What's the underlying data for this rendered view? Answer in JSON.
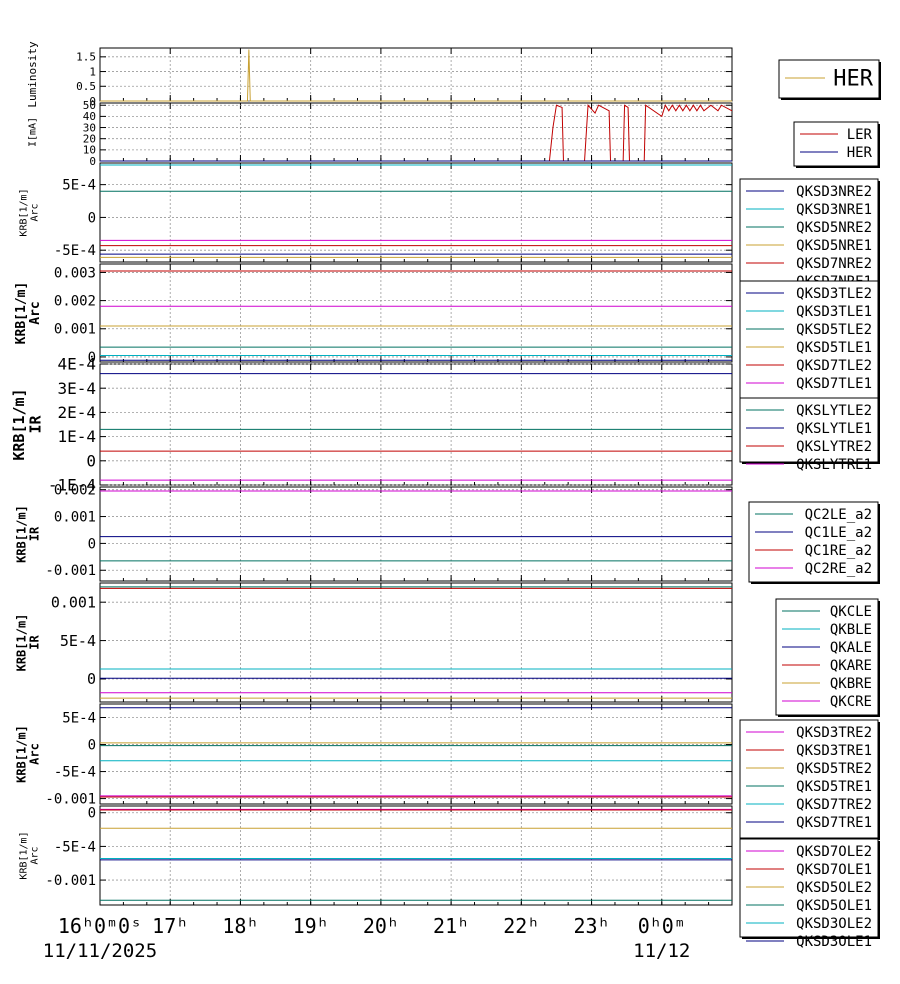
{
  "time_axis": {
    "ticks": [
      {
        "t": 16,
        "label": "16ʰ0ᵐ0ˢ"
      },
      {
        "t": 17,
        "label": "17ʰ"
      },
      {
        "t": 18,
        "label": "18ʰ"
      },
      {
        "t": 19,
        "label": "19ʰ"
      },
      {
        "t": 20,
        "label": "20ʰ"
      },
      {
        "t": 21,
        "label": "21ʰ"
      },
      {
        "t": 22,
        "label": "22ʰ"
      },
      {
        "t": 23,
        "label": "23ʰ"
      },
      {
        "t": 24,
        "label": "0ʰ0ᵐ"
      }
    ],
    "dates": [
      {
        "t": 16,
        "label": "11/11/2025"
      },
      {
        "t": 24,
        "label": "11/12"
      }
    ],
    "range": [
      16,
      25
    ]
  },
  "chart_data": [
    {
      "type": "line",
      "ylabel": "Luminosity",
      "ylim": [
        0,
        1.8
      ],
      "yticks": [
        {
          "v": 0,
          "label": "0"
        },
        {
          "v": 0.5,
          "label": "0.5"
        },
        {
          "v": 1,
          "label": "1"
        },
        {
          "v": 1.5,
          "label": "1.5"
        }
      ],
      "legend": [
        {
          "name": "HER",
          "color": "#c8a032"
        }
      ],
      "series": [
        {
          "name": "HER",
          "color": "#c8a032",
          "points": [
            [
              16,
              0
            ],
            [
              18.1,
              0
            ],
            [
              18.12,
              1.75
            ],
            [
              18.14,
              0
            ],
            [
              25,
              0
            ]
          ]
        }
      ]
    },
    {
      "type": "line",
      "ylabel": "I[mA]",
      "ylim": [
        0,
        52
      ],
      "yticks": [
        {
          "v": 0,
          "label": "0"
        },
        {
          "v": 10,
          "label": "10"
        },
        {
          "v": 20,
          "label": "20"
        },
        {
          "v": 30,
          "label": "30"
        },
        {
          "v": 40,
          "label": "40"
        },
        {
          "v": 50,
          "label": "50"
        }
      ],
      "legend": [
        {
          "name": "LER",
          "color": "#c00000"
        },
        {
          "name": "HER",
          "color": "#000080"
        }
      ],
      "series": [
        {
          "name": "LER",
          "color": "#c00000",
          "points": [
            [
              16,
              0
            ],
            [
              22.4,
              0
            ],
            [
              22.45,
              30
            ],
            [
              22.5,
              50
            ],
            [
              22.58,
              48
            ],
            [
              22.6,
              0
            ],
            [
              22.9,
              0
            ],
            [
              22.95,
              50
            ],
            [
              23.05,
              43
            ],
            [
              23.1,
              50
            ],
            [
              23.25,
              45
            ],
            [
              23.27,
              0
            ],
            [
              23.45,
              0
            ],
            [
              23.47,
              50
            ],
            [
              23.52,
              48
            ],
            [
              23.54,
              0
            ],
            [
              23.75,
              0
            ],
            [
              23.77,
              50
            ],
            [
              24.0,
              40
            ],
            [
              24.05,
              50
            ],
            [
              24.1,
              45
            ],
            [
              24.15,
              50
            ],
            [
              24.2,
              45
            ],
            [
              24.25,
              50
            ],
            [
              24.3,
              45
            ],
            [
              24.35,
              50
            ],
            [
              24.4,
              45
            ],
            [
              24.45,
              50
            ],
            [
              24.5,
              45
            ],
            [
              24.55,
              50
            ],
            [
              24.6,
              45
            ],
            [
              24.7,
              50
            ],
            [
              24.8,
              45
            ],
            [
              24.85,
              50
            ],
            [
              25,
              45
            ]
          ]
        },
        {
          "name": "HER",
          "color": "#000080",
          "points": [
            [
              16,
              0
            ],
            [
              25,
              0
            ]
          ]
        }
      ]
    },
    {
      "type": "line",
      "ylabel": "KRB[1/m]\nArc",
      "ylim": [
        -0.00068,
        0.00083
      ],
      "yticks": [
        {
          "v": -0.0005,
          "label": "-5E-4"
        },
        {
          "v": 0,
          "label": "0"
        },
        {
          "v": 0.0005,
          "label": "5E-4"
        }
      ],
      "legend": [
        {
          "name": "QKSD3NRE2",
          "color": "#000080"
        },
        {
          "name": "QKSD3NRE1",
          "color": "#00b0c0"
        },
        {
          "name": "QKSD5NRE2",
          "color": "#007060"
        },
        {
          "name": "QKSD5NRE1",
          "color": "#c8a032"
        },
        {
          "name": "QKSD7NRE2",
          "color": "#c00000"
        },
        {
          "name": "QKSD7NRE1",
          "color": "#a000a0"
        }
      ],
      "series": [
        {
          "name": "QKSD3NRE2",
          "color": "#000080",
          "value": -0.00056
        },
        {
          "name": "QKSD3NRE1",
          "color": "#00b0c0",
          "value": 0.0008
        },
        {
          "name": "QKSD5NRE2",
          "color": "#007060",
          "value": 0.0004
        },
        {
          "name": "QKSD5NRE1",
          "color": "#c8a032",
          "value": -0.00061
        },
        {
          "name": "QKSD7NRE2",
          "color": "#c00000",
          "value": -0.00043
        },
        {
          "name": "QKSD7NRE1",
          "color": "#d000d0",
          "value": -0.00035
        }
      ]
    },
    {
      "type": "line",
      "ylabel": "KRB[1/m]\nArc",
      "ylim": [
        -0.00018,
        0.0033
      ],
      "yticks": [
        {
          "v": 0,
          "label": "0"
        },
        {
          "v": 0.001,
          "label": "0.001"
        },
        {
          "v": 0.002,
          "label": "0.002"
        },
        {
          "v": 0.003,
          "label": "0.003"
        }
      ],
      "legend": [
        {
          "name": "QKSD3TLE2",
          "color": "#000080"
        },
        {
          "name": "QKSD3TLE1",
          "color": "#00b0c0"
        },
        {
          "name": "QKSD5TLE2",
          "color": "#007060"
        },
        {
          "name": "QKSD5TLE1",
          "color": "#c8a032"
        },
        {
          "name": "QKSD7TLE2",
          "color": "#c00000"
        },
        {
          "name": "QKSD7TLE1",
          "color": "#d000d0"
        }
      ],
      "series": [
        {
          "name": "QKSD3TLE2",
          "color": "#000080",
          "value": -0.00012
        },
        {
          "name": "QKSD3TLE1",
          "color": "#00b0c0",
          "value": 5e-05
        },
        {
          "name": "QKSD5TLE2",
          "color": "#007060",
          "value": 0.00035
        },
        {
          "name": "QKSD5TLE1",
          "color": "#c8a032",
          "value": 0.0011
        },
        {
          "name": "QKSD7TLE2",
          "color": "#c00000",
          "value": 0.00305
        },
        {
          "name": "QKSD7TLE1",
          "color": "#d000d0",
          "value": 0.0018
        }
      ]
    },
    {
      "type": "line",
      "ylabel": "KRB[1/m]\nIR",
      "ylim": [
        -0.0001,
        0.0004
      ],
      "yticks": [
        {
          "v": -0.0001,
          "label": "-1E-4"
        },
        {
          "v": 0,
          "label": "0"
        },
        {
          "v": 0.0001,
          "label": "1E-4"
        },
        {
          "v": 0.0002,
          "label": "2E-4"
        },
        {
          "v": 0.0003,
          "label": "3E-4"
        },
        {
          "v": 0.0004,
          "label": "4E-4"
        }
      ],
      "legend": [
        {
          "name": "QKSLYTLE2",
          "color": "#007060"
        },
        {
          "name": "QKSLYTLE1",
          "color": "#000080"
        },
        {
          "name": "QKSLYTRE2",
          "color": "#c00000"
        },
        {
          "name": "QKSLYTRE1",
          "color": "#d000d0"
        }
      ],
      "series": [
        {
          "name": "QKSLYTLE2",
          "color": "#007060",
          "value": 0.00013
        },
        {
          "name": "QKSLYTLE1",
          "color": "#000080",
          "value": 0.00036
        },
        {
          "name": "QKSLYTRE2",
          "color": "#c00000",
          "value": 4e-05
        },
        {
          "name": "QKSLYTRE1",
          "color": "#d000d0",
          "value": -8e-05
        }
      ]
    },
    {
      "type": "line",
      "ylabel": "KRB[1/m]\nIR",
      "ylim": [
        -0.0014,
        0.0021
      ],
      "yticks": [
        {
          "v": -0.001,
          "label": "-0.001"
        },
        {
          "v": 0,
          "label": "0"
        },
        {
          "v": 0.001,
          "label": "0.001"
        },
        {
          "v": 0.002,
          "label": "0.002"
        }
      ],
      "legend": [
        {
          "name": "QC2LE_a2",
          "color": "#007060"
        },
        {
          "name": "QC1LE_a2",
          "color": "#000080"
        },
        {
          "name": "QC1RE_a2",
          "color": "#c00000"
        },
        {
          "name": "QC2RE_a2",
          "color": "#d000d0"
        }
      ],
      "series": [
        {
          "name": "QC2LE_a2",
          "color": "#007060",
          "value": -0.00065
        },
        {
          "name": "QC1LE_a2",
          "color": "#000080",
          "value": 0.00025
        },
        {
          "name": "QC1RE_a2",
          "color": "#c00000",
          "value": 0.00195
        },
        {
          "name": "QC2RE_a2",
          "color": "#d000d0",
          "value": 0.00195
        }
      ]
    },
    {
      "type": "line",
      "ylabel": "KRB[1/m]\nIR",
      "ylim": [
        -0.0003,
        0.00125
      ],
      "yticks": [
        {
          "v": 0,
          "label": "0"
        },
        {
          "v": 0.0005,
          "label": "5E-4"
        },
        {
          "v": 0.001,
          "label": "0.001"
        }
      ],
      "legend": [
        {
          "name": "QKCLE",
          "color": "#007060"
        },
        {
          "name": "QKBLE",
          "color": "#00b0c0"
        },
        {
          "name": "QKALE",
          "color": "#000080"
        },
        {
          "name": "QKARE",
          "color": "#c00000"
        },
        {
          "name": "QKBRE",
          "color": "#c8a032"
        },
        {
          "name": "QKCRE",
          "color": "#d000d0"
        }
      ],
      "series": [
        {
          "name": "QKCLE",
          "color": "#007060",
          "value": 0.0012
        },
        {
          "name": "QKBLE",
          "color": "#00b0c0",
          "value": 0.00013
        },
        {
          "name": "QKALE",
          "color": "#000080",
          "value": 1e-05
        },
        {
          "name": "QKARE",
          "color": "#c00000",
          "value": 0.00118
        },
        {
          "name": "QKBRE",
          "color": "#c8a032",
          "value": -0.00025
        },
        {
          "name": "QKCRE",
          "color": "#d000d0",
          "value": -0.00018
        }
      ]
    },
    {
      "type": "line",
      "ylabel": "KRB[1/m]\nArc",
      "ylim": [
        -0.0011,
        0.00075
      ],
      "yticks": [
        {
          "v": -0.001,
          "label": "-0.001"
        },
        {
          "v": -0.0005,
          "label": "-5E-4"
        },
        {
          "v": 0,
          "label": "0"
        },
        {
          "v": 0.0005,
          "label": "5E-4"
        }
      ],
      "legend": [
        {
          "name": "QKSD3TRE2",
          "color": "#d000d0"
        },
        {
          "name": "QKSD3TRE1",
          "color": "#c00000"
        },
        {
          "name": "QKSD5TRE2",
          "color": "#c8a032"
        },
        {
          "name": "QKSD5TRE1",
          "color": "#007060"
        },
        {
          "name": "QKSD7TRE2",
          "color": "#00b0c0"
        },
        {
          "name": "QKSD7TRE1",
          "color": "#000080"
        }
      ],
      "series": [
        {
          "name": "QKSD3TRE2",
          "color": "#d000d0",
          "value": -0.00095
        },
        {
          "name": "QKSD3TRE1",
          "color": "#c00000",
          "value": -0.00097
        },
        {
          "name": "QKSD5TRE2",
          "color": "#c8a032",
          "value": 3e-05
        },
        {
          "name": "QKSD5TRE1",
          "color": "#007060",
          "value": -2e-05
        },
        {
          "name": "QKSD7TRE2",
          "color": "#00b0c0",
          "value": -0.0003
        },
        {
          "name": "QKSD7TRE1",
          "color": "#000080",
          "value": 0.00068
        }
      ]
    },
    {
      "type": "line",
      "ylabel": "KRB[1/m]\nArc",
      "ylim": [
        -0.00137,
        0.0001
      ],
      "yticks": [
        {
          "v": -0.001,
          "label": "-0.001"
        },
        {
          "v": -0.0005,
          "label": "-5E-4"
        },
        {
          "v": 0,
          "label": "0"
        }
      ],
      "legend": [
        {
          "name": "QKSD7OLE2",
          "color": "#d000d0"
        },
        {
          "name": "QKSD7OLE1",
          "color": "#c00000"
        },
        {
          "name": "QKSD5OLE2",
          "color": "#c8a032"
        },
        {
          "name": "QKSD5OLE1",
          "color": "#007060"
        },
        {
          "name": "QKSD3OLE2",
          "color": "#00b0c0"
        },
        {
          "name": "QKSD3OLE1",
          "color": "#000080"
        }
      ],
      "series": [
        {
          "name": "QKSD7OLE2",
          "color": "#d000d0",
          "value": 5e-05
        },
        {
          "name": "QKSD7OLE1",
          "color": "#c00000",
          "value": 4e-05
        },
        {
          "name": "QKSD5OLE2",
          "color": "#c8a032",
          "value": -0.00023
        },
        {
          "name": "QKSD5OLE1",
          "color": "#007060",
          "value": -0.0013
        },
        {
          "name": "QKSD3OLE2",
          "color": "#00b0c0",
          "value": -0.00068
        },
        {
          "name": "QKSD3OLE1",
          "color": "#000080",
          "value": -0.0007
        }
      ]
    }
  ]
}
